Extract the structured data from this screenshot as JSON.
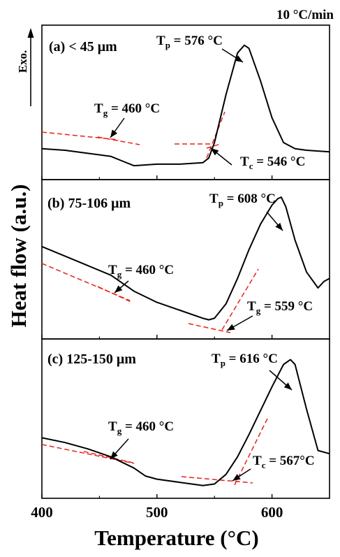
{
  "chart_data": {
    "type": "line",
    "title": "",
    "rate_label": "10 °C/min",
    "exo_label": "Exo.",
    "ylabel": "Heat flow (a.u.)",
    "xlabel": "Temperature (°C)",
    "xlim": [
      400,
      650
    ],
    "xticks": [
      400,
      500,
      600
    ],
    "y_ticks_shown": false,
    "grid": false,
    "panels": [
      {
        "label": "(a)  < 45 μm",
        "annotations": [
          {
            "text": "Tg = 460 °C",
            "sym": "T",
            "sub": "g",
            "rest": " = 460 °C",
            "temperature": 460
          },
          {
            "text": "Tp = 576 °C",
            "sym": "T",
            "sub": "p",
            "rest": " = 576 °C",
            "temperature": 576
          },
          {
            "text": "Tc = 546 °C",
            "sym": "T",
            "sub": "c",
            "rest": " = 546 °C",
            "temperature": 546
          }
        ],
        "curve": {
          "x": [
            400,
            420,
            440,
            460,
            470,
            480,
            500,
            520,
            540,
            545,
            550,
            560,
            570,
            576,
            580,
            590,
            600,
            610,
            620,
            630,
            650
          ],
          "y": [
            0.2,
            0.19,
            0.17,
            0.15,
            0.12,
            0.09,
            0.1,
            0.1,
            0.11,
            0.14,
            0.24,
            0.55,
            0.82,
            0.87,
            0.85,
            0.64,
            0.4,
            0.24,
            0.2,
            0.19,
            0.18
          ]
        }
      },
      {
        "label": "(b) 75-106 μm",
        "annotations": [
          {
            "text": "Tg = 460 °C",
            "sym": "T",
            "sub": "g",
            "rest": " = 460 °C",
            "temperature": 460
          },
          {
            "text": "Tp = 608 °C",
            "sym": "T",
            "sub": "p",
            "rest": " = 608 °C",
            "temperature": 608
          },
          {
            "text": "Tg = 559 °C",
            "sym": "T",
            "sub": "g",
            "rest": " = 559 °C",
            "temperature": 559
          }
        ],
        "curve": {
          "x": [
            400,
            420,
            440,
            460,
            480,
            500,
            520,
            540,
            545,
            550,
            560,
            570,
            580,
            590,
            600,
            605,
            608,
            612,
            620,
            630,
            640,
            645,
            650
          ],
          "y": [
            0.58,
            0.52,
            0.46,
            0.4,
            0.3,
            0.23,
            0.18,
            0.13,
            0.12,
            0.13,
            0.22,
            0.38,
            0.56,
            0.72,
            0.84,
            0.88,
            0.89,
            0.83,
            0.62,
            0.42,
            0.32,
            0.36,
            0.38
          ]
        }
      },
      {
        "label": "(c) 125-150 μm",
        "annotations": [
          {
            "text": "Tg = 460 °C",
            "sym": "T",
            "sub": "g",
            "rest": " = 460 °C",
            "temperature": 460
          },
          {
            "text": "Tp = 616 °C",
            "sym": "T",
            "sub": "p",
            "rest": " = 616 °C",
            "temperature": 616
          },
          {
            "text": "Tc = 567°C",
            "sym": "T",
            "sub": "c",
            "rest": " = 567°C",
            "temperature": 567
          }
        ],
        "curve": {
          "x": [
            400,
            420,
            440,
            460,
            480,
            490,
            500,
            520,
            540,
            550,
            560,
            570,
            580,
            590,
            600,
            610,
            616,
            620,
            630,
            640,
            650
          ],
          "y": [
            0.38,
            0.35,
            0.31,
            0.26,
            0.19,
            0.14,
            0.12,
            0.1,
            0.08,
            0.09,
            0.15,
            0.26,
            0.4,
            0.55,
            0.7,
            0.84,
            0.87,
            0.84,
            0.56,
            0.3,
            0.28
          ]
        }
      }
    ]
  },
  "colors": {
    "curve": "#000000",
    "tangent": "#e8201a",
    "arrow": "#000000",
    "frame": "#000000"
  }
}
